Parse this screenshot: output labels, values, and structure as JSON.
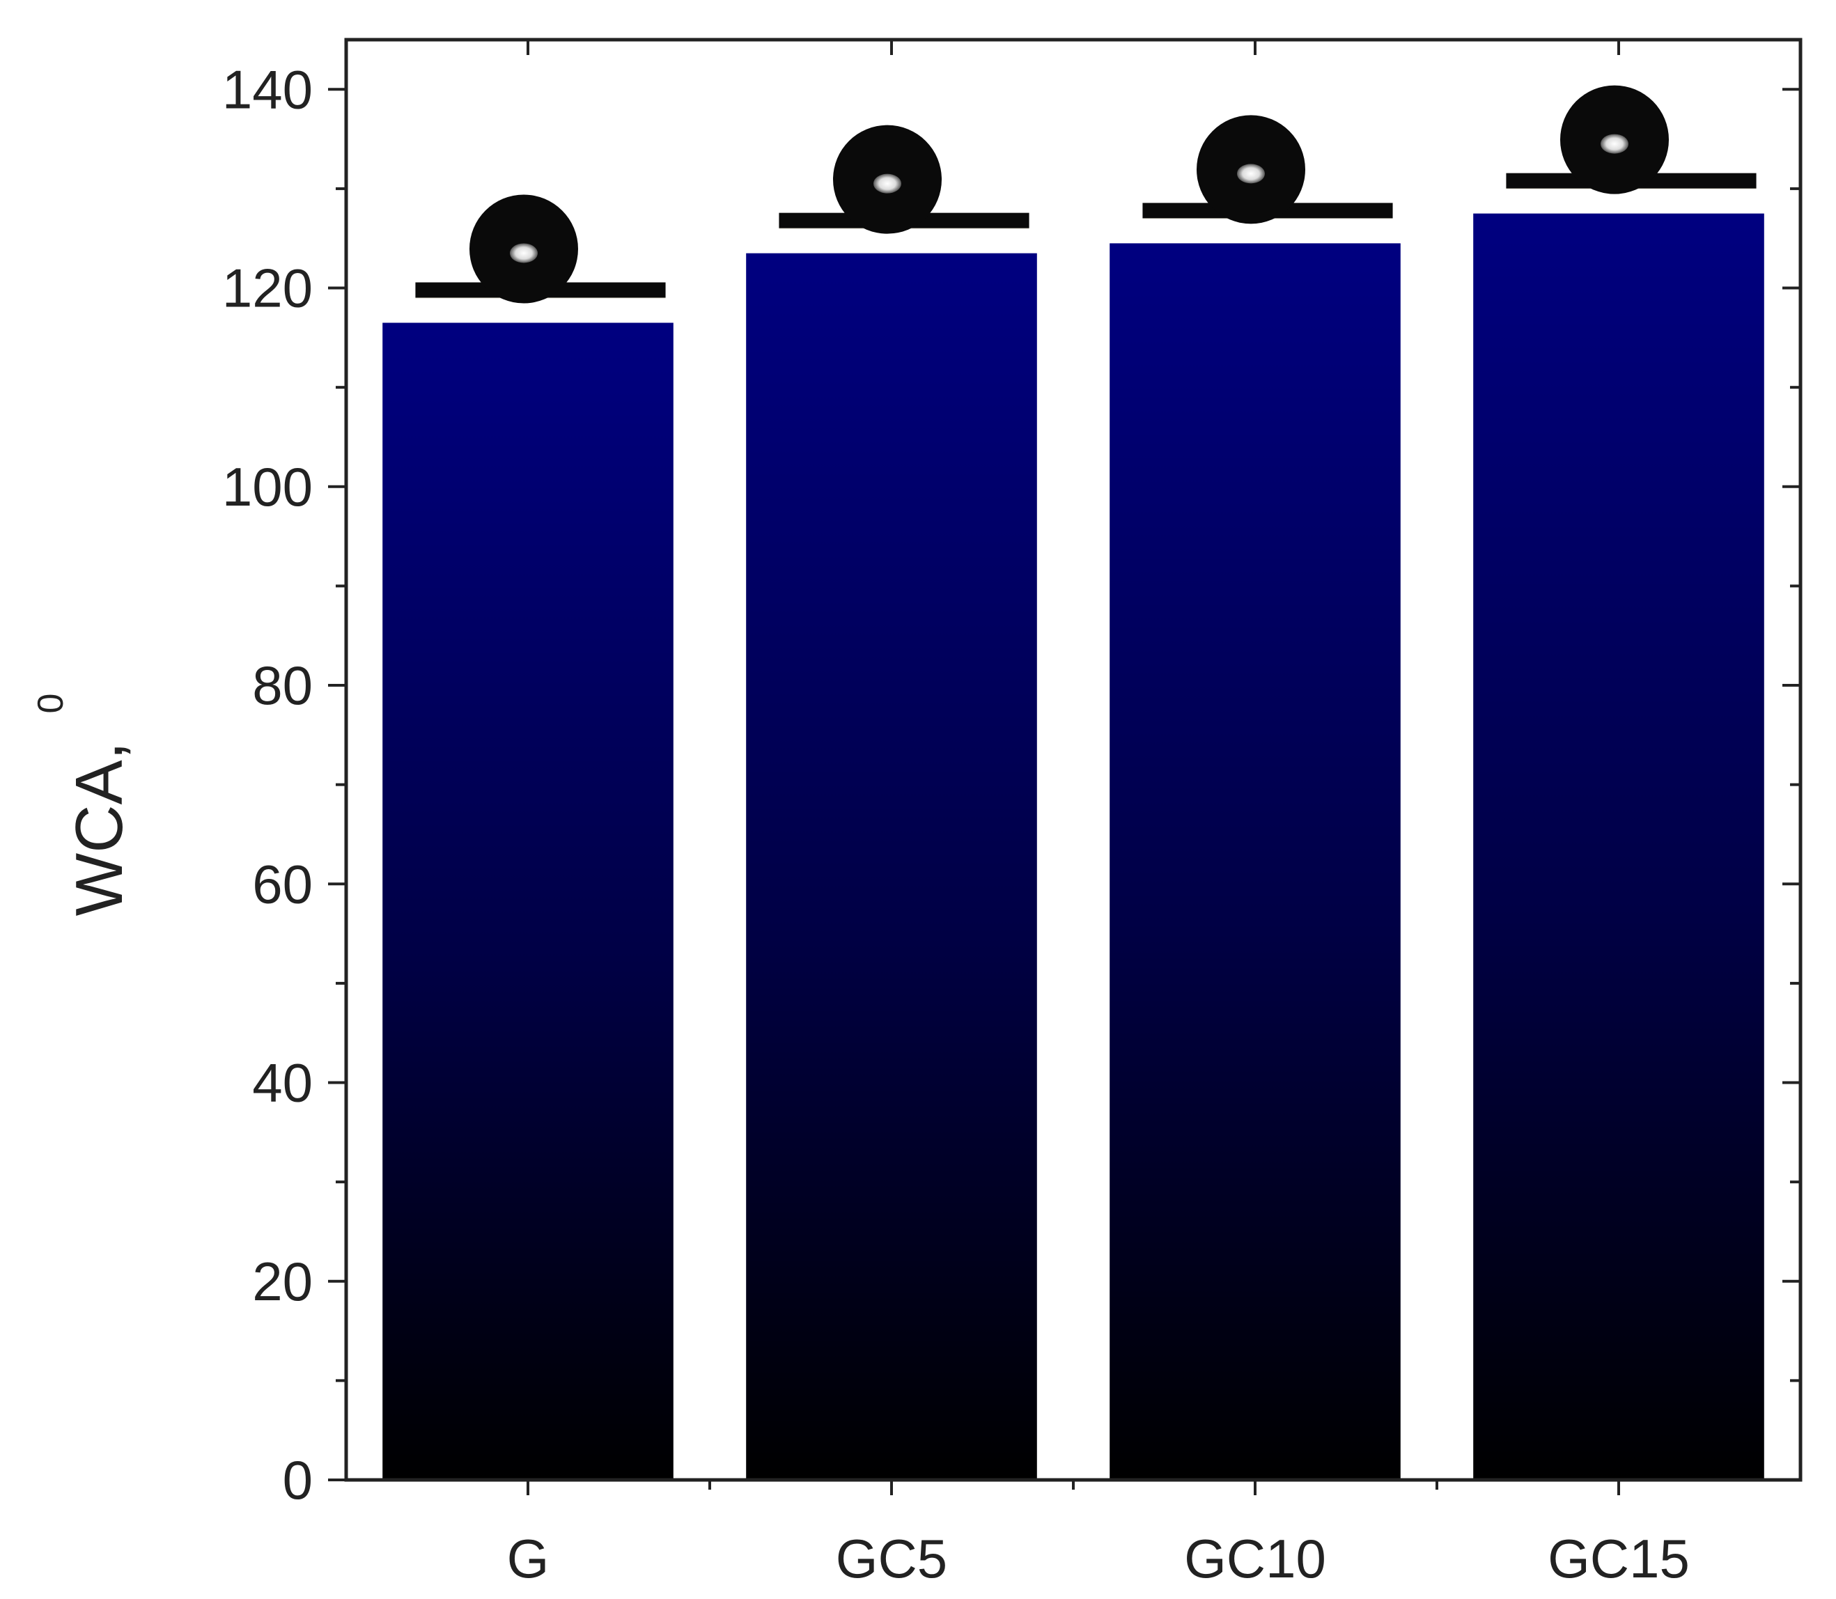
{
  "colors": {
    "bar_top": "#000080",
    "bar_bottom": "#000000",
    "axis": "#222222",
    "droplet": "#0a0a0a"
  },
  "icons": {
    "droplet": "water-droplet-icon"
  },
  "chart_data": {
    "type": "bar",
    "title": "",
    "xlabel": "",
    "ylabel": "WCA,",
    "ylabel_superscript": "0",
    "categories": [
      "G",
      "GC5",
      "GC10",
      "GC15"
    ],
    "values": [
      116.5,
      123.5,
      124.5,
      127.5
    ],
    "ylim": [
      0,
      145
    ],
    "yticks": [
      0,
      20,
      40,
      60,
      80,
      100,
      120,
      140
    ],
    "ytick_labels": [
      "0",
      "20",
      "40",
      "60",
      "80",
      "100",
      "120",
      "140"
    ],
    "grid": false,
    "legend": "none"
  }
}
